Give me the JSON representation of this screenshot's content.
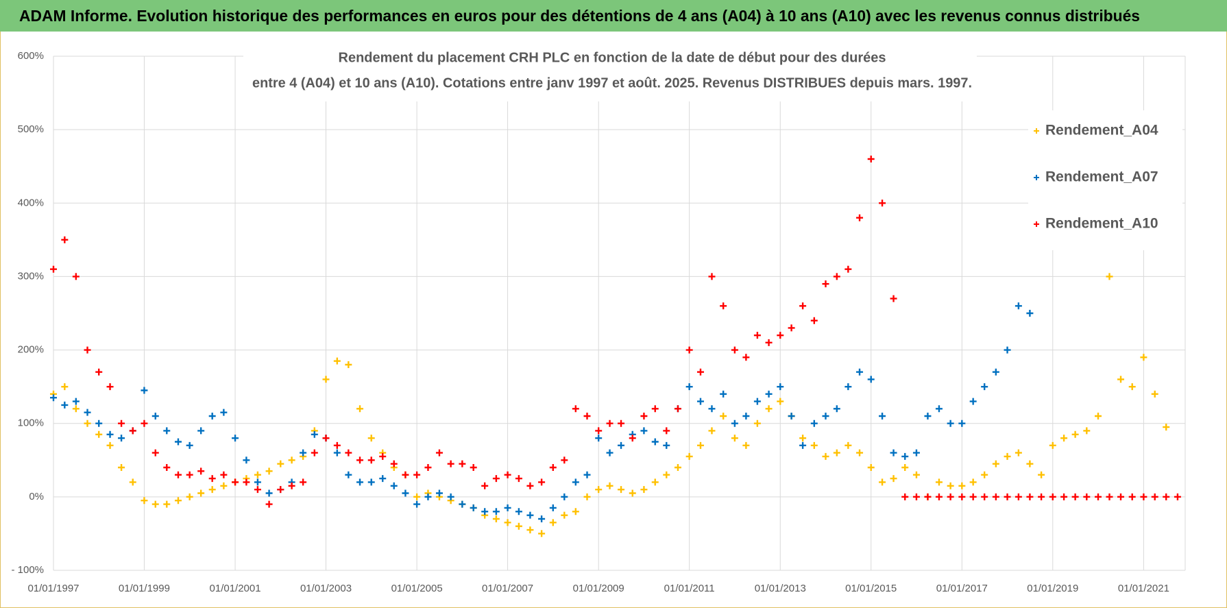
{
  "header": {
    "title": "ADAM Informe. Evolution historique des performances en euros pour des détentions de 4 ans (A04) à 10 ans (A10) avec les revenus connus distribués"
  },
  "chart_data": {
    "type": "scatter",
    "title": "Rendement du placement CRH PLC en fonction de la date de début pour des durées",
    "subtitle": "entre 4 (A04) et 10 ans (A10).  Cotations entre janv 1997 et août. 2025. Revenus DISTRIBUES depuis mars. 1997.",
    "xlim": [
      "01/01/1997",
      "01/12/2021"
    ],
    "xticks": [
      "01/01/1997",
      "01/01/1999",
      "01/01/2001",
      "01/01/2003",
      "01/01/2005",
      "01/01/2007",
      "01/01/2009",
      "01/01/2011",
      "01/01/2013",
      "01/01/2015",
      "01/01/2017",
      "01/01/2019",
      "01/01/2021"
    ],
    "ylim": [
      -100,
      600
    ],
    "yticks": [
      {
        "value": -100,
        "label": "- 100%"
      },
      {
        "value": 0,
        "label": "0%"
      },
      {
        "value": 100,
        "label": "100%"
      },
      {
        "value": 200,
        "label": "200%"
      },
      {
        "value": 300,
        "label": "300%"
      },
      {
        "value": 400,
        "label": "400%"
      },
      {
        "value": 500,
        "label": "500%"
      },
      {
        "value": 600,
        "label": "600%"
      }
    ],
    "grid": true,
    "legend": "right",
    "series": [
      {
        "name": "Rendement_A04",
        "color": "#FFC000",
        "x": [
          "01/01/1997",
          "01/04/1997",
          "01/07/1997",
          "01/10/1997",
          "01/01/1998",
          "01/04/1998",
          "01/07/1998",
          "01/10/1998",
          "01/01/1999",
          "01/04/1999",
          "01/07/1999",
          "01/10/1999",
          "01/01/2000",
          "01/04/2000",
          "01/07/2000",
          "01/10/2000",
          "01/01/2001",
          "01/04/2001",
          "01/07/2001",
          "01/10/2001",
          "01/01/2002",
          "01/04/2002",
          "01/07/2002",
          "01/10/2002",
          "01/01/2003",
          "01/04/2003",
          "01/07/2003",
          "01/10/2003",
          "01/01/2004",
          "01/04/2004",
          "01/07/2004",
          "01/10/2004",
          "01/01/2005",
          "01/04/2005",
          "01/07/2005",
          "01/10/2005",
          "01/01/2006",
          "01/04/2006",
          "01/07/2006",
          "01/10/2006",
          "01/01/2007",
          "01/04/2007",
          "01/07/2007",
          "01/10/2007",
          "01/01/2008",
          "01/04/2008",
          "01/07/2008",
          "01/10/2008",
          "01/01/2009",
          "01/04/2009",
          "01/07/2009",
          "01/10/2009",
          "01/01/2010",
          "01/04/2010",
          "01/07/2010",
          "01/10/2010",
          "01/01/2011",
          "01/04/2011",
          "01/07/2011",
          "01/10/2011",
          "01/01/2012",
          "01/04/2012",
          "01/07/2012",
          "01/10/2012",
          "01/01/2013",
          "01/04/2013",
          "01/07/2013",
          "01/10/2013",
          "01/01/2014",
          "01/04/2014",
          "01/07/2014",
          "01/10/2014",
          "01/01/2015",
          "01/04/2015",
          "01/07/2015",
          "01/10/2015",
          "01/01/2016",
          "01/04/2016",
          "01/07/2016",
          "01/10/2016",
          "01/01/2017",
          "01/04/2017",
          "01/07/2017",
          "01/10/2017",
          "01/01/2018",
          "01/04/2018",
          "01/07/2018",
          "01/10/2018",
          "01/01/2019",
          "01/04/2019",
          "01/07/2019",
          "01/10/2019",
          "01/01/2020",
          "01/04/2020",
          "01/07/2020",
          "01/10/2020",
          "01/01/2021",
          "01/04/2021",
          "01/07/2021"
        ],
        "values": [
          140,
          150,
          120,
          100,
          85,
          70,
          40,
          20,
          -5,
          -10,
          -10,
          -5,
          0,
          5,
          10,
          15,
          20,
          25,
          30,
          35,
          45,
          50,
          55,
          90,
          160,
          185,
          180,
          120,
          80,
          60,
          40,
          30,
          0,
          5,
          0,
          -5,
          -10,
          -15,
          -25,
          -30,
          -35,
          -40,
          -45,
          -50,
          -35,
          -25,
          -20,
          0,
          10,
          15,
          10,
          5,
          10,
          20,
          30,
          40,
          55,
          70,
          90,
          110,
          80,
          70,
          100,
          120,
          130,
          110,
          80,
          70,
          55,
          60,
          70,
          60,
          40,
          20,
          25,
          40,
          30,
          0,
          20,
          15,
          15,
          20,
          30,
          45,
          55,
          60,
          45,
          30,
          70,
          80,
          85,
          90,
          110,
          300,
          160,
          150,
          190,
          140,
          95
        ]
      },
      {
        "name": "Rendement_A07",
        "color": "#0070C0",
        "x": [
          "01/01/1997",
          "01/04/1997",
          "01/07/1997",
          "01/10/1997",
          "01/01/1998",
          "01/04/1998",
          "01/07/1998",
          "01/10/1998",
          "01/01/1999",
          "01/04/1999",
          "01/07/1999",
          "01/10/1999",
          "01/01/2000",
          "01/04/2000",
          "01/07/2000",
          "01/10/2000",
          "01/01/2001",
          "01/04/2001",
          "01/07/2001",
          "01/10/2001",
          "01/01/2002",
          "01/04/2002",
          "01/07/2002",
          "01/10/2002",
          "01/01/2003",
          "01/04/2003",
          "01/07/2003",
          "01/10/2003",
          "01/01/2004",
          "01/04/2004",
          "01/07/2004",
          "01/10/2004",
          "01/01/2005",
          "01/04/2005",
          "01/07/2005",
          "01/10/2005",
          "01/01/2006",
          "01/04/2006",
          "01/07/2006",
          "01/10/2006",
          "01/01/2007",
          "01/04/2007",
          "01/07/2007",
          "01/10/2007",
          "01/01/2008",
          "01/04/2008",
          "01/07/2008",
          "01/10/2008",
          "01/01/2009",
          "01/04/2009",
          "01/07/2009",
          "01/10/2009",
          "01/01/2010",
          "01/04/2010",
          "01/07/2010",
          "01/10/2010",
          "01/01/2011",
          "01/04/2011",
          "01/07/2011",
          "01/10/2011",
          "01/01/2012",
          "01/04/2012",
          "01/07/2012",
          "01/10/2012",
          "01/01/2013",
          "01/04/2013",
          "01/07/2013",
          "01/10/2013",
          "01/01/2014",
          "01/04/2014",
          "01/07/2014",
          "01/10/2014",
          "01/01/2015",
          "01/04/2015",
          "01/07/2015",
          "01/10/2015",
          "01/01/2016",
          "01/04/2016",
          "01/07/2016",
          "01/10/2016",
          "01/01/2017",
          "01/04/2017",
          "01/07/2017",
          "01/10/2017",
          "01/01/2018",
          "01/04/2018",
          "01/07/2018"
        ],
        "values": [
          135,
          125,
          130,
          115,
          100,
          85,
          80,
          90,
          145,
          110,
          90,
          75,
          70,
          90,
          110,
          115,
          80,
          50,
          20,
          5,
          10,
          20,
          60,
          85,
          80,
          60,
          30,
          20,
          20,
          25,
          15,
          5,
          -10,
          0,
          5,
          0,
          -10,
          -15,
          -20,
          -20,
          -15,
          -20,
          -25,
          -30,
          -15,
          0,
          20,
          30,
          80,
          60,
          70,
          85,
          90,
          75,
          70,
          120,
          150,
          130,
          120,
          140,
          100,
          110,
          130,
          140,
          150,
          110,
          70,
          100,
          110,
          120,
          150,
          170,
          160,
          110,
          60,
          55,
          60,
          110,
          120,
          100,
          100,
          130,
          150,
          170,
          200,
          260,
          250
        ]
      },
      {
        "name": "Rendement_A10",
        "color": "#FF0000",
        "x": [
          "01/01/1997",
          "01/04/1997",
          "01/07/1997",
          "01/10/1997",
          "01/01/1998",
          "01/04/1998",
          "01/07/1998",
          "01/10/1998",
          "01/01/1999",
          "01/04/1999",
          "01/07/1999",
          "01/10/1999",
          "01/01/2000",
          "01/04/2000",
          "01/07/2000",
          "01/10/2000",
          "01/01/2001",
          "01/04/2001",
          "01/07/2001",
          "01/10/2001",
          "01/01/2002",
          "01/04/2002",
          "01/07/2002",
          "01/10/2002",
          "01/01/2003",
          "01/04/2003",
          "01/07/2003",
          "01/10/2003",
          "01/01/2004",
          "01/04/2004",
          "01/07/2004",
          "01/10/2004",
          "01/01/2005",
          "01/04/2005",
          "01/07/2005",
          "01/10/2005",
          "01/01/2006",
          "01/04/2006",
          "01/07/2006",
          "01/10/2006",
          "01/01/2007",
          "01/04/2007",
          "01/07/2007",
          "01/10/2007",
          "01/01/2008",
          "01/04/2008",
          "01/07/2008",
          "01/10/2008",
          "01/01/2009",
          "01/04/2009",
          "01/07/2009",
          "01/10/2009",
          "01/01/2010",
          "01/04/2010",
          "01/07/2010",
          "01/10/2010",
          "01/01/2011",
          "01/04/2011",
          "01/07/2011",
          "01/10/2011",
          "01/01/2012",
          "01/04/2012",
          "01/07/2012",
          "01/10/2012",
          "01/01/2013",
          "01/04/2013",
          "01/07/2013",
          "01/10/2013",
          "01/01/2014",
          "01/04/2014",
          "01/07/2014",
          "01/10/2014",
          "01/01/2015",
          "01/04/2015",
          "01/07/2015",
          "01/10/2015",
          "01/01/2016",
          "01/04/2016",
          "01/07/2016",
          "01/10/2016",
          "01/01/2017",
          "01/04/2017",
          "01/07/2017",
          "01/10/2017",
          "01/01/2018",
          "01/04/2018",
          "01/07/2018",
          "01/10/2018",
          "01/01/2019",
          "01/04/2019",
          "01/07/2019",
          "01/10/2019",
          "01/01/2020",
          "01/04/2020",
          "01/07/2020",
          "01/10/2020",
          "01/01/2021",
          "01/04/2021",
          "01/07/2021",
          "01/10/2021"
        ],
        "values": [
          310,
          350,
          300,
          200,
          170,
          150,
          100,
          90,
          100,
          60,
          40,
          30,
          30,
          35,
          25,
          30,
          20,
          20,
          10,
          -10,
          10,
          15,
          20,
          60,
          80,
          70,
          60,
          50,
          50,
          55,
          45,
          30,
          30,
          40,
          60,
          45,
          45,
          40,
          15,
          25,
          30,
          25,
          15,
          20,
          40,
          50,
          120,
          110,
          90,
          100,
          100,
          80,
          110,
          120,
          90,
          120,
          200,
          170,
          300,
          260,
          200,
          190,
          220,
          210,
          220,
          230,
          260,
          240,
          290,
          300,
          310,
          380,
          460,
          400,
          270,
          0,
          0,
          0,
          0,
          0,
          0,
          0,
          0,
          0,
          0,
          0,
          0,
          0,
          0,
          0,
          0,
          0,
          0,
          0,
          0,
          0,
          0,
          0,
          0,
          0
        ]
      }
    ]
  }
}
